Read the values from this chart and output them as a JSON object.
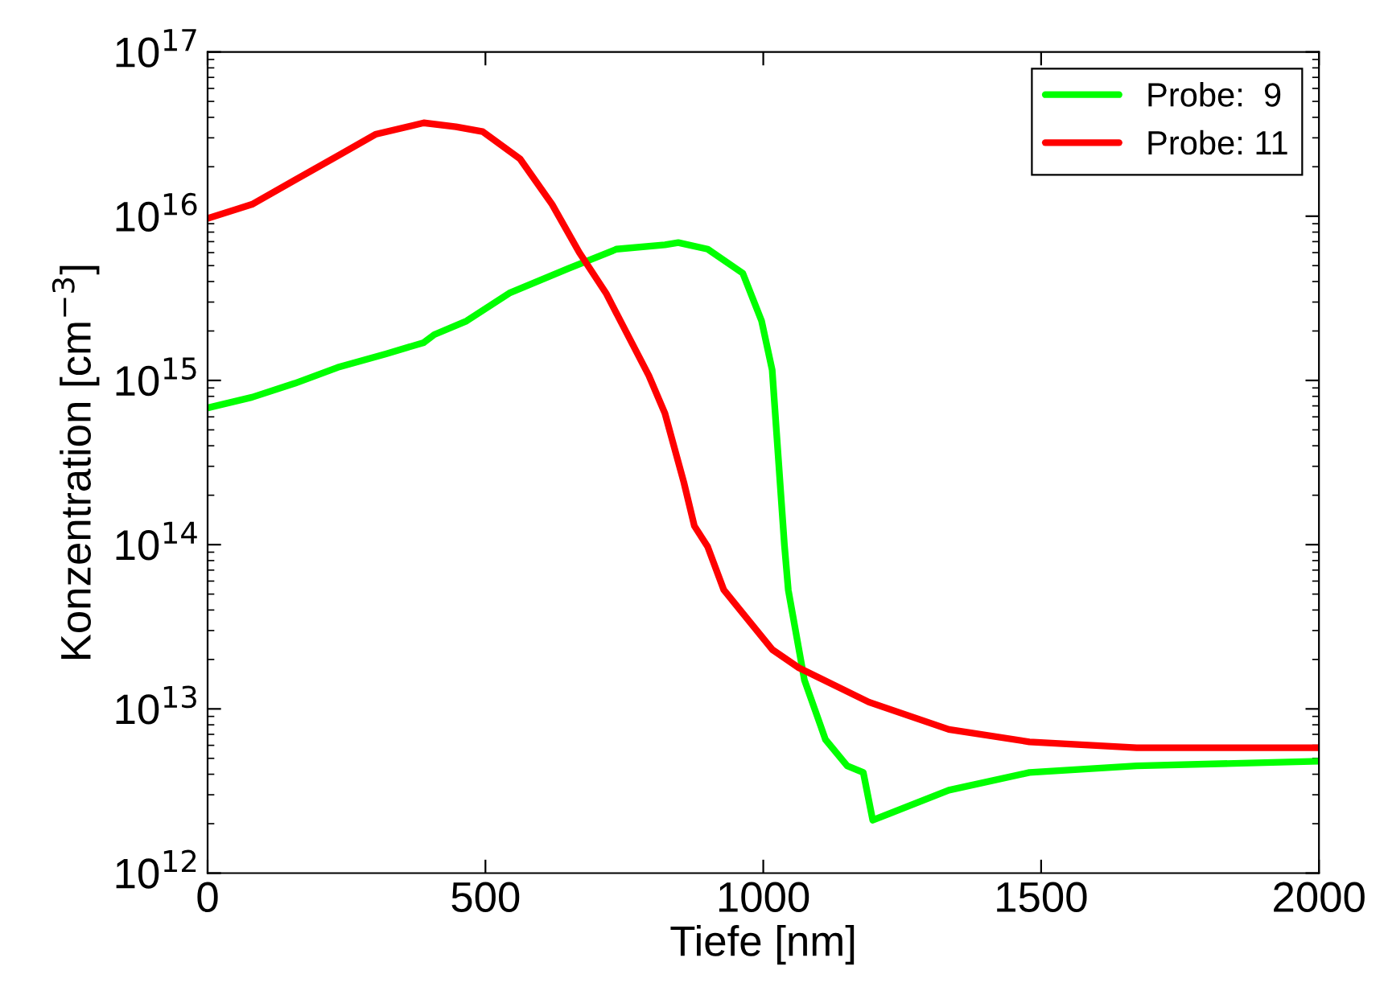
{
  "chart_data": {
    "type": "line",
    "xlabel": "Tiefe [nm]",
    "ylabel": "Konzentration [cm$^{−3}$]",
    "log": "y",
    "xlim": [
      0,
      2000
    ],
    "xticks": [
      0,
      500,
      1000,
      1500,
      2000
    ],
    "ylim": [
      1000000000000.0,
      1e+17
    ],
    "yticks": [
      {
        "value": 1000000000000.0,
        "label": "10$^{12}$"
      },
      {
        "value": 10000000000000.0,
        "label": "10$^{13}$"
      },
      {
        "value": 100000000000000.0,
        "label": "10$^{14}$"
      },
      {
        "value": 1000000000000000.0,
        "label": "10$^{15}$"
      },
      {
        "value": 1e+16,
        "label": "10$^{16}$"
      },
      {
        "value": 1e+17,
        "label": "10$^{17}$"
      }
    ],
    "grid": false,
    "legend": "top right",
    "marker": "none",
    "line_style": "solid",
    "series": [
      {
        "name": "Probe:  9",
        "color": "#00ff00",
        "x": [
          0,
          80,
          157,
          234,
          321,
          389,
          408,
          466,
          543,
          649,
          736,
          823,
          847,
          900,
          963,
          997,
          1016,
          1038,
          1045,
          1074,
          1112,
          1151,
          1180,
          1197,
          1334,
          1479,
          1672,
          2000
        ],
        "values": [
          680000000000000.0,
          790000000000000.0,
          960000000000000.0,
          1200000000000000.0,
          1450000000000000.0,
          1700000000000000.0,
          1900000000000000.0,
          2300000000000000.0,
          3400000000000000.0,
          4800000000000000.0,
          6300000000000000.0,
          6700000000000000.0,
          6900000000000000.0,
          6300000000000000.0,
          4500000000000000.0,
          2300000000000000.0,
          1160000000000000.0,
          100000000000000.0,
          53000000000000.0,
          15000000000000.0,
          6500000000000.0,
          4500000000000.0,
          4100000000000.0,
          2100000000000.0,
          3200000000000.0,
          4100000000000.0,
          4500000000000.0,
          4800000000000.0
        ]
      },
      {
        "name": "Probe: 11",
        "color": "#ff0000",
        "x": [
          0,
          80,
          157,
          234,
          302,
          389,
          447,
          495,
          562,
          620,
          669,
          717,
          794,
          823,
          857,
          876,
          900,
          929,
          1016,
          1064,
          1190,
          1334,
          1479,
          1672,
          2000
        ],
        "values": [
          9700000000000000.0,
          1.18e+16,
          1.66e+16,
          2.33e+16,
          3.15e+16,
          3.7e+16,
          3.5e+16,
          3.27e+16,
          2.24e+16,
          1.18e+16,
          6000000000000000.0,
          3400000000000000.0,
          1070000000000000.0,
          630000000000000.0,
          240000000000000.0,
          130000000000000.0,
          97000000000000.0,
          53000000000000.0,
          23000000000000.0,
          17800000000000.0,
          11000000000000.0,
          7500000000000.0,
          6300000000000.0,
          5800000000000.0,
          5800000000000.0
        ]
      }
    ]
  }
}
